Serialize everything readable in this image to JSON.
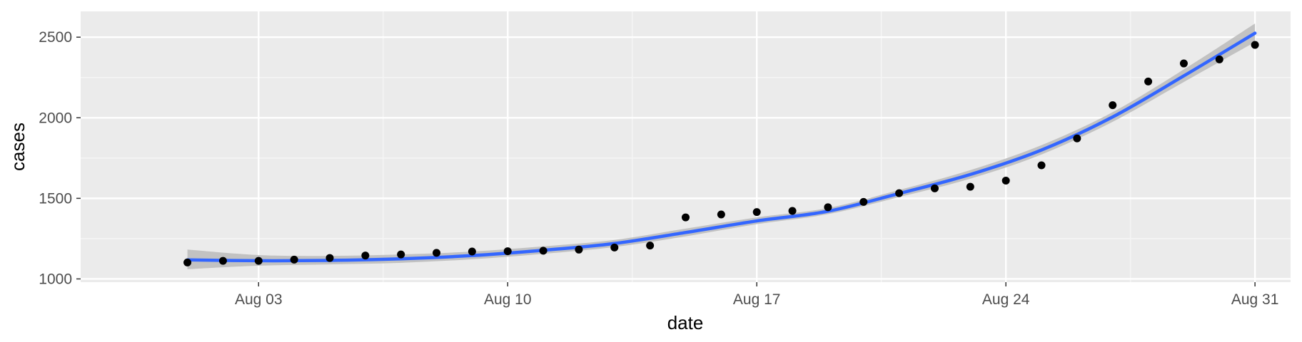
{
  "chart_data": {
    "type": "scatter",
    "xlabel": "date",
    "ylabel": "cases",
    "x_ticks": [
      "Aug 03",
      "Aug 10",
      "Aug 17",
      "Aug 24",
      "Aug 31"
    ],
    "y_ticks": [
      1000,
      1500,
      2000,
      2500
    ],
    "xlim": [
      "2020-07-29",
      "2020-09-01"
    ],
    "ylim": [
      980,
      2660
    ],
    "grid": true,
    "series": [
      {
        "kind": "points",
        "color": "#000000",
        "x": [
          "2020-08-01",
          "2020-08-02",
          "2020-08-03",
          "2020-08-04",
          "2020-08-05",
          "2020-08-06",
          "2020-08-07",
          "2020-08-08",
          "2020-08-09",
          "2020-08-10",
          "2020-08-11",
          "2020-08-12",
          "2020-08-13",
          "2020-08-14",
          "2020-08-15",
          "2020-08-16",
          "2020-08-17",
          "2020-08-18",
          "2020-08-19",
          "2020-08-20",
          "2020-08-21",
          "2020-08-22",
          "2020-08-23",
          "2020-08-24",
          "2020-08-25",
          "2020-08-26",
          "2020-08-27",
          "2020-08-28",
          "2020-08-29",
          "2020-08-30",
          "2020-08-31"
        ],
        "y": [
          1102,
          1112,
          1112,
          1120,
          1130,
          1145,
          1152,
          1162,
          1170,
          1172,
          1175,
          1182,
          1195,
          1207,
          1382,
          1400,
          1415,
          1422,
          1445,
          1478,
          1532,
          1562,
          1572,
          1610,
          1705,
          1872,
          2078,
          2225,
          2337,
          2362,
          2452
        ]
      },
      {
        "kind": "smooth",
        "color": "#3366ff",
        "band_color": "#bebebe",
        "x": [
          "2020-08-01",
          "2020-08-03",
          "2020-08-05",
          "2020-08-07",
          "2020-08-09",
          "2020-08-11",
          "2020-08-13",
          "2020-08-15",
          "2020-08-17",
          "2020-08-19",
          "2020-08-21",
          "2020-08-23",
          "2020-08-25",
          "2020-08-27",
          "2020-08-29",
          "2020-08-31"
        ],
        "y": [
          1118,
          1113,
          1115,
          1125,
          1145,
          1178,
          1220,
          1288,
          1360,
          1420,
          1530,
          1648,
          1800,
          2005,
          2260,
          2525
        ],
        "lower": [
          1060,
          1082,
          1090,
          1100,
          1122,
          1156,
          1198,
          1264,
          1340,
          1402,
          1508,
          1622,
          1772,
          1975,
          2222,
          2470
        ],
        "upper": [
          1182,
          1148,
          1143,
          1152,
          1170,
          1202,
          1242,
          1312,
          1382,
          1440,
          1552,
          1675,
          1830,
          2035,
          2300,
          2585
        ]
      }
    ]
  }
}
